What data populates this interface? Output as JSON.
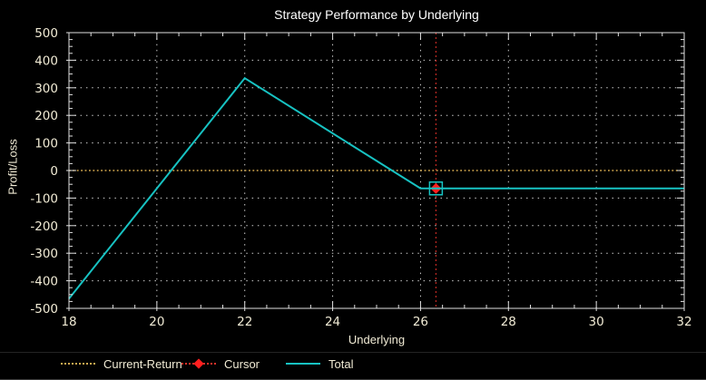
{
  "chart_data": {
    "type": "line",
    "title": "Strategy Performance by Underlying",
    "xlabel": "Underlying",
    "ylabel": "Profit/Loss",
    "xlim": [
      18,
      32
    ],
    "ylim": [
      -500,
      500
    ],
    "x_major_tick_step": 2,
    "x_minor_tick_step": 0.5,
    "y_major_tick_step": 100,
    "y_minor_tick_step": 25,
    "grid": "dotted-at-major-ticks",
    "background_color": "#000000",
    "axis_color": "#e0e0e0",
    "grid_color": "#cccccc",
    "tick_label_color": "#f1ebd5",
    "title_color": "#ffffff",
    "x_tick_labels": [
      18,
      20,
      22,
      24,
      26,
      28,
      30,
      32
    ],
    "y_tick_labels": [
      -500,
      -400,
      -300,
      -200,
      -100,
      0,
      100,
      200,
      300,
      400,
      500
    ],
    "series": [
      {
        "name": "Current-Return",
        "type": "hline",
        "y": 0,
        "style": "dotted",
        "color": "#d4a94f"
      },
      {
        "name": "Cursor",
        "type": "vline",
        "x": 26.35,
        "style": "dotted",
        "color": "#e03028",
        "marker": {
          "shape": "diamond",
          "color": "#ff1f1f",
          "outline": "square",
          "outline_color": "#17c2c2",
          "y": -65
        }
      },
      {
        "name": "Total",
        "type": "line",
        "style": "solid",
        "color": "#17c2c2",
        "points": [
          [
            18,
            -465
          ],
          [
            22,
            335
          ],
          [
            26,
            -65
          ],
          [
            32,
            -65
          ]
        ]
      }
    ],
    "legend": {
      "position": "bottom",
      "items": [
        {
          "label": "Current-Return",
          "swatch": "dotted-line",
          "color": "#d4a94f"
        },
        {
          "label": "Cursor",
          "swatch": "dotted-line-with-diamond",
          "color": "#e03028",
          "marker_color": "#ff1f1f"
        },
        {
          "label": "Total",
          "swatch": "solid-line",
          "color": "#17c2c2"
        }
      ]
    }
  }
}
